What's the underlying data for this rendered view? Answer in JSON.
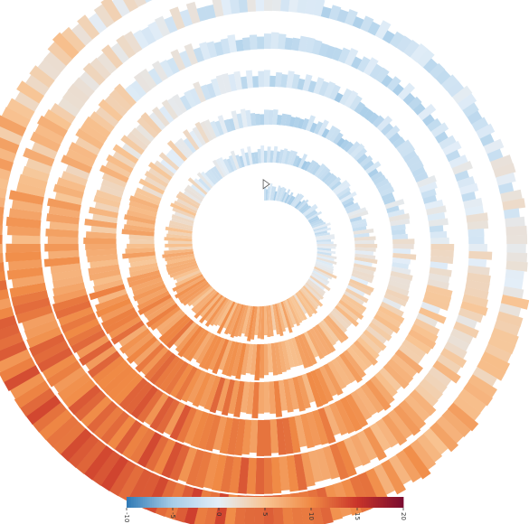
{
  "chart_data": {
    "type": "spiral-radial-bar",
    "title": "",
    "subtitle": "",
    "turns": 6,
    "bars_per_turn": 180,
    "value_domain": [
      -10,
      10
    ],
    "color_scale": {
      "stops": [
        -10,
        -5,
        0,
        5,
        10,
        15,
        20
      ],
      "colors": [
        "#2f79b5",
        "#a8cde8",
        "#e3eef8",
        "#f8c493",
        "#f08a45",
        "#c9342a",
        "#7a0c30"
      ]
    },
    "legend": {
      "position": "bottom-center",
      "ticks": [
        "-10",
        "-5",
        "0",
        "5",
        "10",
        "15",
        "20"
      ]
    },
    "series": {
      "name": "",
      "description_of_pattern": "values cycle once per turn: lowest (blue) toward upper-right, highest (dark orange/red) toward lower-left; amplitude grows slightly outward",
      "turn_means": [
        2.0,
        3.0,
        3.5,
        4.0,
        4.5,
        5.0
      ],
      "seasonal_amplitude": [
        5.5,
        6.0,
        6.5,
        7.0,
        7.0,
        7.5
      ],
      "noise": 2.4
    }
  }
}
